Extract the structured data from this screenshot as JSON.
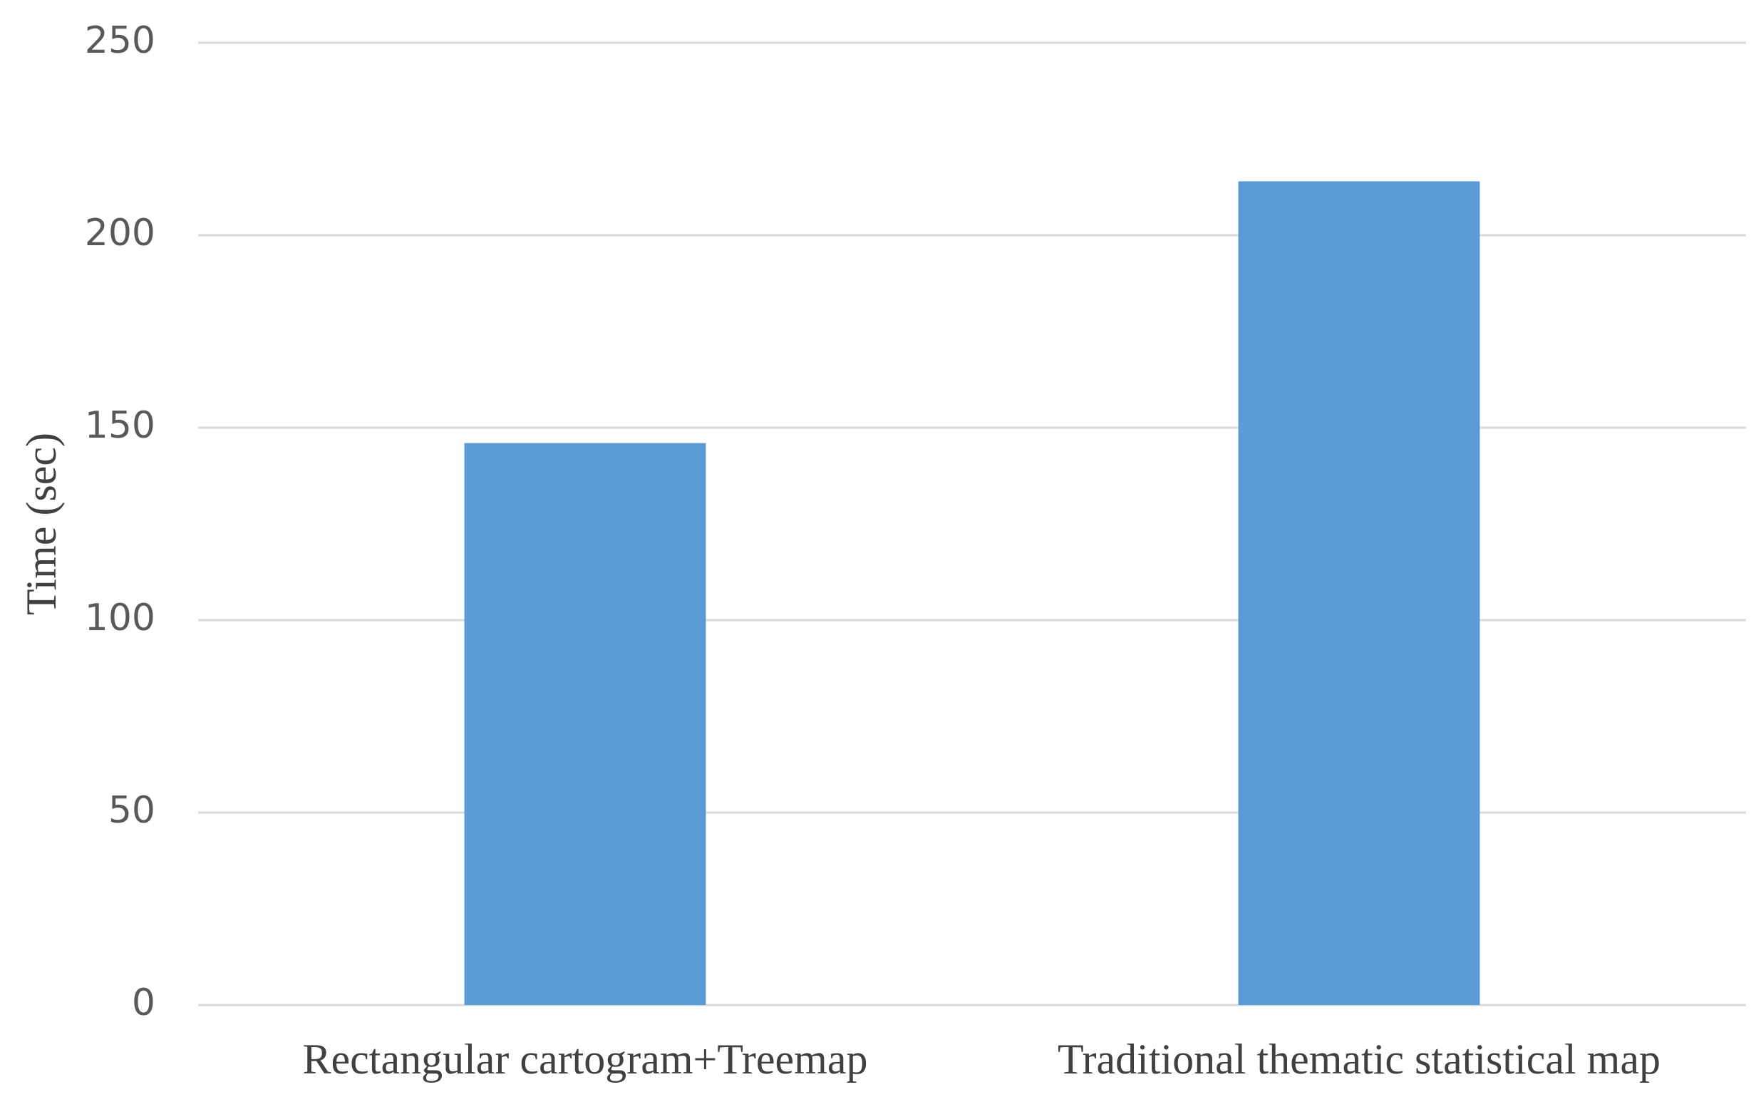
{
  "chart_data": {
    "type": "bar",
    "y_label": "Time (sec)",
    "categories": [
      "Rectangular cartogram+Treemap",
      "Traditional thematic statistical map"
    ],
    "values": [
      146,
      214
    ],
    "color": "#5b9bd5",
    "ylim": [
      0,
      250
    ],
    "yticks": [
      0,
      50,
      100,
      150,
      200,
      250
    ],
    "grid": true
  }
}
